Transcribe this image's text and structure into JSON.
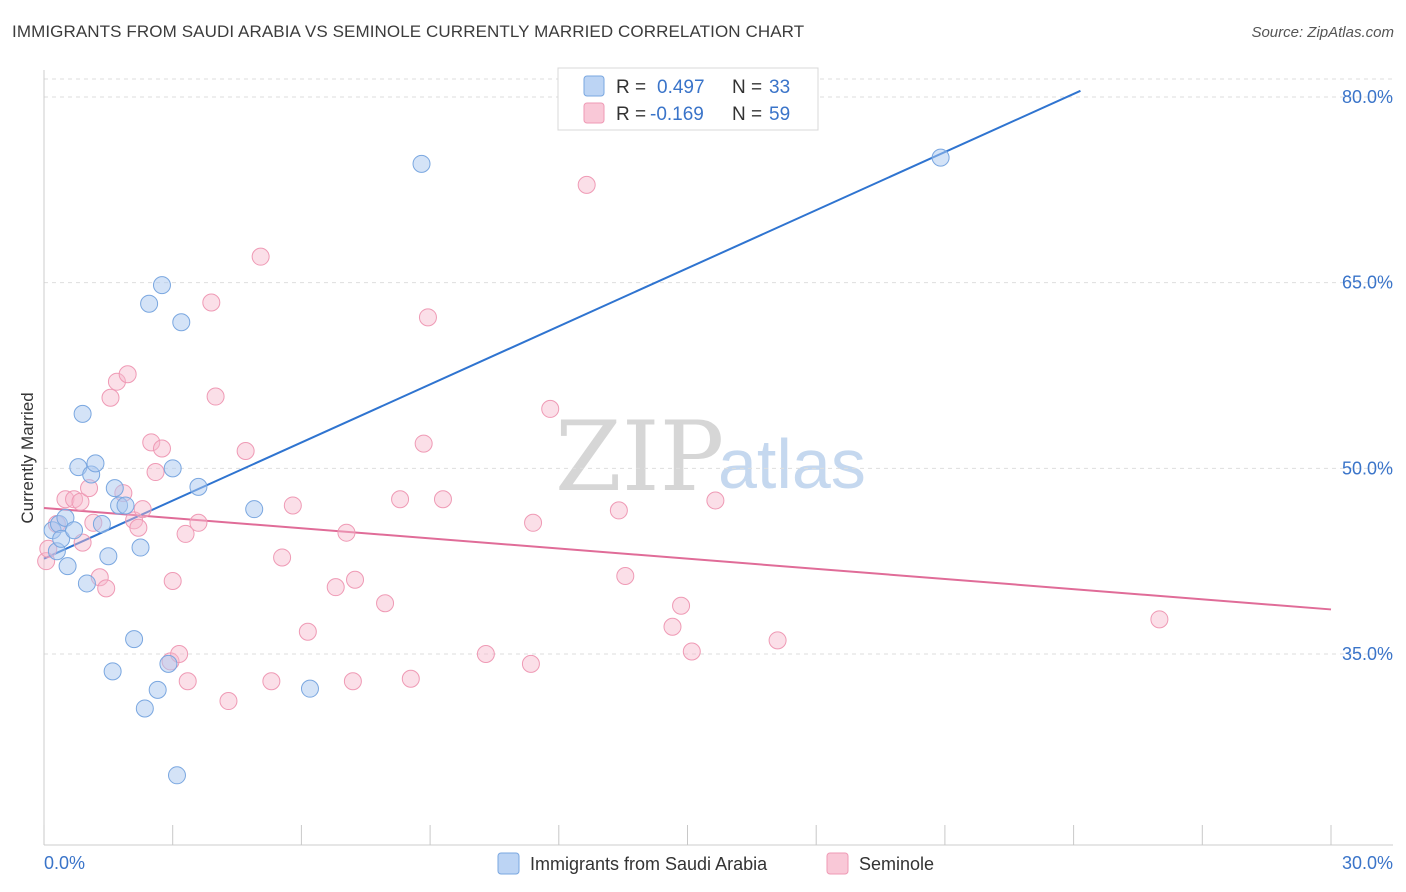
{
  "header": {
    "title": "IMMIGRANTS FROM SAUDI ARABIA VS SEMINOLE CURRENTLY MARRIED CORRELATION CHART",
    "source": "Source: ZipAtlas.com"
  },
  "watermark": {
    "part1": "ZIP",
    "part2": "atlas"
  },
  "chart_data": {
    "type": "scatter",
    "title": "IMMIGRANTS FROM SAUDI ARABIA VS SEMINOLE CURRENTLY MARRIED CORRELATION CHART",
    "xlabel": "",
    "ylabel": "Currently Married",
    "xlim": [
      0,
      30
    ],
    "ylim": [
      22,
      84
    ],
    "x_tick_labels": {
      "min": "0.0%",
      "max": "30.0%"
    },
    "y_ticks": [
      35,
      50,
      65,
      80
    ],
    "y_tick_labels": [
      "35.0%",
      "50.0%",
      "65.0%",
      "80.0%"
    ],
    "grid": true,
    "colors": {
      "series1_fill": "#a9c8f0",
      "series1_stroke": "#7aa7e0",
      "series1_line": "#2f74d0",
      "series2_fill": "#f7b8cc",
      "series2_stroke": "#ef9ab5",
      "series2_line": "#e06c98"
    },
    "legend": {
      "series1": {
        "r_label": "R =",
        "r_value": "0.497",
        "n_label": "N =",
        "n_value": "33"
      },
      "series2": {
        "r_label": "R =",
        "r_value": "-0.169",
        "n_label": "N =",
        "n_value": "59"
      }
    },
    "series": [
      {
        "name": "Immigrants from Saudi Arabia",
        "trend": {
          "x0": 0,
          "y0": 42.7,
          "x1": 24.16,
          "y1": 80.5
        },
        "points": [
          [
            0.2,
            45.0
          ],
          [
            0.3,
            43.3
          ],
          [
            0.35,
            45.5
          ],
          [
            0.4,
            44.3
          ],
          [
            0.5,
            46.0
          ],
          [
            0.55,
            42.1
          ],
          [
            0.7,
            45.0
          ],
          [
            0.8,
            50.1
          ],
          [
            0.9,
            54.4
          ],
          [
            1.0,
            40.7
          ],
          [
            1.1,
            49.5
          ],
          [
            1.2,
            50.4
          ],
          [
            1.35,
            45.5
          ],
          [
            1.5,
            42.9
          ],
          [
            1.6,
            33.6
          ],
          [
            1.65,
            48.4
          ],
          [
            1.75,
            47.0
          ],
          [
            1.9,
            47.0
          ],
          [
            2.1,
            36.2
          ],
          [
            2.25,
            43.6
          ],
          [
            2.35,
            30.6
          ],
          [
            2.45,
            63.3
          ],
          [
            2.65,
            32.1
          ],
          [
            2.75,
            64.8
          ],
          [
            2.9,
            34.2
          ],
          [
            3.0,
            50.0
          ],
          [
            3.1,
            25.2
          ],
          [
            3.2,
            61.8
          ],
          [
            3.6,
            48.5
          ],
          [
            4.9,
            46.7
          ],
          [
            6.2,
            32.2
          ],
          [
            8.8,
            74.6
          ],
          [
            20.9,
            75.1
          ]
        ]
      },
      {
        "name": "Seminole",
        "trend": {
          "x0": 0,
          "y0": 46.8,
          "x1": 30,
          "y1": 38.6
        },
        "points": [
          [
            0.05,
            42.5
          ],
          [
            0.3,
            45.5
          ],
          [
            0.5,
            47.5
          ],
          [
            0.7,
            47.5
          ],
          [
            0.85,
            47.3
          ],
          [
            0.9,
            44.0
          ],
          [
            1.05,
            48.4
          ],
          [
            1.15,
            45.6
          ],
          [
            1.3,
            41.2
          ],
          [
            1.45,
            40.3
          ],
          [
            1.55,
            55.7
          ],
          [
            1.7,
            57.0
          ],
          [
            1.85,
            48.0
          ],
          [
            1.95,
            57.6
          ],
          [
            2.1,
            45.8
          ],
          [
            2.2,
            45.2
          ],
          [
            2.3,
            46.7
          ],
          [
            2.5,
            52.1
          ],
          [
            2.6,
            49.7
          ],
          [
            2.75,
            51.6
          ],
          [
            2.95,
            34.4
          ],
          [
            3.0,
            40.9
          ],
          [
            3.15,
            35.0
          ],
          [
            3.3,
            44.7
          ],
          [
            3.35,
            32.8
          ],
          [
            3.6,
            45.6
          ],
          [
            3.9,
            63.4
          ],
          [
            4.0,
            55.8
          ],
          [
            4.3,
            31.2
          ],
          [
            4.7,
            51.4
          ],
          [
            5.05,
            67.1
          ],
          [
            5.3,
            32.8
          ],
          [
            5.55,
            42.8
          ],
          [
            5.8,
            47.0
          ],
          [
            6.15,
            36.8
          ],
          [
            6.8,
            40.4
          ],
          [
            7.05,
            44.8
          ],
          [
            7.2,
            32.8
          ],
          [
            7.25,
            41.0
          ],
          [
            7.95,
            39.1
          ],
          [
            8.3,
            47.5
          ],
          [
            8.55,
            33.0
          ],
          [
            8.85,
            52.0
          ],
          [
            8.95,
            62.2
          ],
          [
            9.3,
            47.5
          ],
          [
            10.3,
            35.0
          ],
          [
            11.35,
            34.2
          ],
          [
            11.4,
            45.6
          ],
          [
            11.8,
            54.8
          ],
          [
            12.65,
            72.9
          ],
          [
            13.4,
            46.6
          ],
          [
            13.55,
            41.3
          ],
          [
            14.65,
            37.2
          ],
          [
            14.85,
            38.9
          ],
          [
            15.1,
            35.2
          ],
          [
            15.65,
            47.4
          ],
          [
            17.1,
            36.1
          ],
          [
            26.0,
            37.8
          ],
          [
            0.1,
            43.5
          ]
        ]
      }
    ]
  },
  "legend_bottom": {
    "series1_label": "Immigrants from Saudi Arabia",
    "series2_label": "Seminole"
  }
}
